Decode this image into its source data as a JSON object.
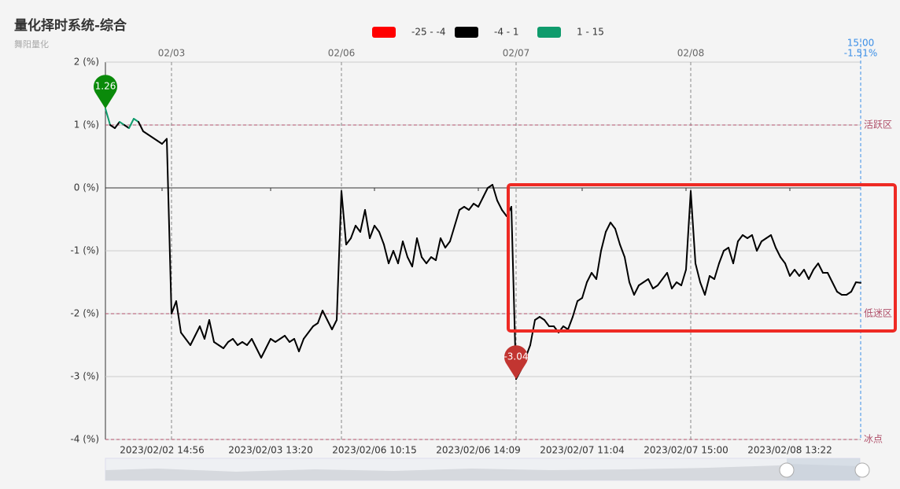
{
  "chart_data": {
    "type": "line",
    "title": "量化择时系统-综合",
    "subtitle": "舞阳量化",
    "categories": [
      null,
      null,
      null,
      null,
      null,
      null,
      null,
      null,
      null,
      null,
      null,
      null,
      "2023/02/02 14:56",
      null,
      null,
      null,
      null,
      null,
      null,
      null,
      null,
      null,
      null,
      null,
      null,
      null,
      null,
      null,
      null,
      null,
      null,
      null,
      null,
      null,
      null,
      "2023/02/03 13:20",
      null,
      null,
      null,
      null,
      null,
      null,
      null,
      null,
      null,
      null,
      null,
      null,
      null,
      null,
      null,
      null,
      null,
      null,
      null,
      null,
      null,
      "2023/02/06 10:15",
      null,
      null,
      null,
      null,
      null,
      null,
      null,
      null,
      null,
      null,
      null,
      null,
      null,
      null,
      null,
      null,
      null,
      null,
      null,
      null,
      null,
      "2023/02/06 14:09",
      null,
      null,
      null,
      null,
      null,
      null,
      null,
      null,
      null,
      null,
      null,
      null,
      null,
      null,
      null,
      null,
      null,
      null,
      null,
      null,
      null,
      "2023/02/07 11:04",
      null,
      null,
      null,
      null,
      null,
      null,
      null,
      null,
      null,
      null,
      null,
      null,
      null,
      null,
      null,
      null,
      null,
      null,
      null,
      null,
      null,
      "2023/02/07 15:00",
      null,
      null,
      null,
      null,
      null,
      null,
      null,
      null,
      null,
      null,
      null,
      null,
      null,
      null,
      null,
      null,
      null,
      null,
      null,
      null,
      null,
      "2023/02/08 13:22",
      null,
      null,
      null,
      null,
      null,
      null,
      null,
      null,
      null,
      null,
      null,
      null,
      null,
      null,
      null
    ],
    "values": [
      1.26,
      1.0,
      0.95,
      1.05,
      1.0,
      0.95,
      1.1,
      1.05,
      0.9,
      0.85,
      0.8,
      0.75,
      0.7,
      0.78,
      -2.0,
      -1.8,
      -2.3,
      -2.4,
      -2.5,
      -2.35,
      -2.2,
      -2.4,
      -2.1,
      -2.45,
      -2.5,
      -2.55,
      -2.45,
      -2.4,
      -2.5,
      -2.45,
      -2.5,
      -2.4,
      -2.55,
      -2.7,
      -2.55,
      -2.4,
      -2.45,
      -2.4,
      -2.35,
      -2.45,
      -2.4,
      -2.6,
      -2.4,
      -2.3,
      -2.2,
      -2.15,
      -1.95,
      -2.1,
      -2.25,
      -2.1,
      -0.05,
      -0.9,
      -0.8,
      -0.6,
      -0.7,
      -0.35,
      -0.8,
      -0.6,
      -0.7,
      -0.9,
      -1.2,
      -1.0,
      -1.2,
      -0.85,
      -1.1,
      -1.25,
      -0.8,
      -1.1,
      -1.2,
      -1.1,
      -1.15,
      -0.8,
      -0.95,
      -0.85,
      -0.6,
      -0.35,
      -0.3,
      -0.35,
      -0.25,
      -0.3,
      -0.15,
      0,
      0.05,
      -0.2,
      -0.35,
      -0.45,
      -0.3,
      -3.04,
      -2.9,
      -2.7,
      -2.5,
      -2.1,
      -2.05,
      -2.1,
      -2.2,
      -2.2,
      -2.3,
      -2.2,
      -2.25,
      -2.05,
      -1.8,
      -1.75,
      -1.5,
      -1.35,
      -1.45,
      -1.0,
      -0.7,
      -0.55,
      -0.65,
      -0.9,
      -1.1,
      -1.5,
      -1.7,
      -1.55,
      -1.5,
      -1.45,
      -1.6,
      -1.55,
      -1.45,
      -1.35,
      -1.6,
      -1.5,
      -1.55,
      -1.3,
      -0.05,
      -1.2,
      -1.5,
      -1.7,
      -1.4,
      -1.45,
      -1.2,
      -1.0,
      -0.95,
      -1.2,
      -0.85,
      -0.75,
      -0.8,
      -0.75,
      -1.0,
      -0.85,
      -0.8,
      -0.75,
      -0.95,
      -1.1,
      -1.2,
      -1.4,
      -1.3,
      -1.4,
      -1.3,
      -1.45,
      -1.3,
      -1.2,
      -1.35,
      -1.35,
      -1.5,
      -1.65,
      -1.7,
      -1.7,
      -1.65,
      -1.5,
      -1.51
    ],
    "pieces": [
      {
        "min": -25,
        "max": -4,
        "label": "-25 - -4",
        "color": "#ff0000"
      },
      {
        "min": -4,
        "max": 1,
        "label": "-4 - 1",
        "color": "#000000"
      },
      {
        "min": 1,
        "max": 15,
        "label": "1 - 15",
        "color": "#0f9b6c"
      }
    ],
    "ylim": [
      -4,
      2
    ],
    "yticks": [
      {
        "value": -4,
        "label": "-4 (%)"
      },
      {
        "value": -3,
        "label": "-3 (%)"
      },
      {
        "value": -2,
        "label": "-2 (%)"
      },
      {
        "value": -1,
        "label": "-1 (%)"
      },
      {
        "value": 0,
        "label": "0 (%)"
      },
      {
        "value": 1,
        "label": "1 (%)"
      },
      {
        "value": 2,
        "label": "2 (%)"
      }
    ],
    "grid": true,
    "day_labels": [
      "02/03",
      "02/06",
      "02/07",
      "02/08"
    ],
    "mark_lines": [
      {
        "value": 1,
        "label": "活跃区"
      },
      {
        "value": -2,
        "label": "低迷区"
      },
      {
        "value": -4,
        "label": "冰点"
      }
    ],
    "mark_line_color": "#b0506a",
    "max_pin_color": "#0a8a0a",
    "min_pin_color": "#c23531",
    "end_marker": {
      "label": "15:00",
      "value": -1.51,
      "value_label": "-1.51%",
      "color": "#3a8ee6"
    }
  }
}
